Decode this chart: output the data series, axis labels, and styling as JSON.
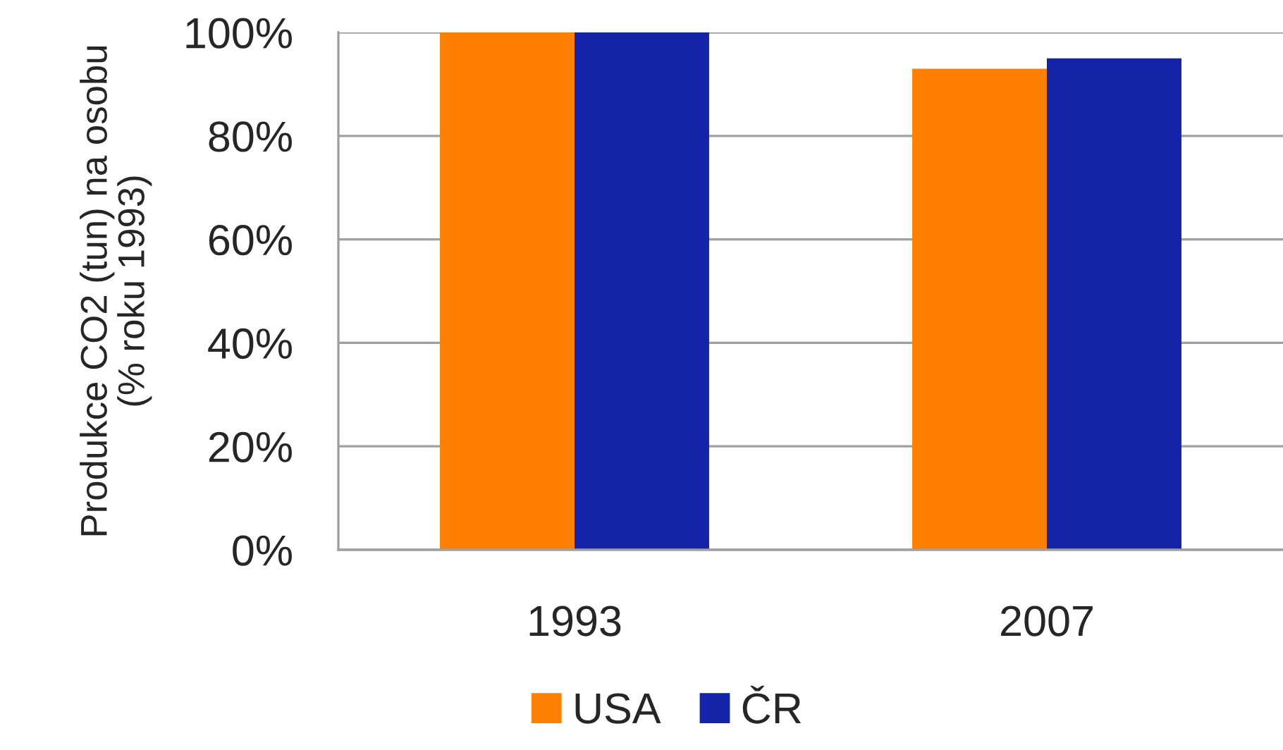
{
  "chart_data": {
    "type": "bar",
    "ylabel": "Produkce CO2 (tun) na osobu\n(% roku 1993)",
    "categories": [
      "1993",
      "2007"
    ],
    "series": [
      {
        "name": "USA",
        "color": "#ff8000",
        "values": [
          100,
          93
        ]
      },
      {
        "name": "ČR",
        "color": "#1424a8",
        "values": [
          100,
          95
        ]
      }
    ],
    "ylim": [
      0,
      100
    ],
    "yticks": [
      {
        "value": 0,
        "label": "0%"
      },
      {
        "value": 20,
        "label": "20%"
      },
      {
        "value": 40,
        "label": "40%"
      },
      {
        "value": 60,
        "label": "60%"
      },
      {
        "value": 80,
        "label": "80%"
      },
      {
        "value": 100,
        "label": "100%"
      }
    ],
    "grid": "y",
    "legend": "bottom"
  }
}
